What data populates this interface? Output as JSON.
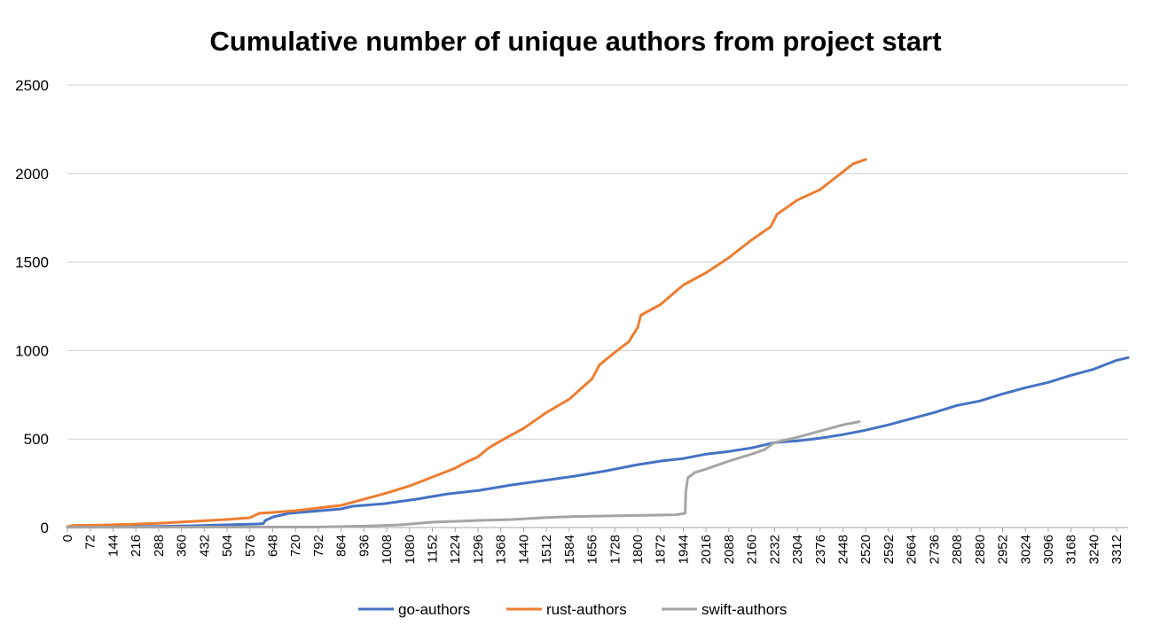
{
  "chart_data": {
    "type": "line",
    "title": "Cumulative number of unique authors from project start",
    "xlabel": "",
    "ylabel": "",
    "xlim": [
      0,
      3348
    ],
    "ylim": [
      0,
      2500
    ],
    "y_ticks": [
      0,
      500,
      1000,
      1500,
      2000,
      2500
    ],
    "x_ticks": [
      0,
      72,
      144,
      216,
      288,
      360,
      432,
      504,
      576,
      648,
      720,
      792,
      864,
      936,
      1008,
      1080,
      1152,
      1224,
      1296,
      1368,
      1440,
      1512,
      1584,
      1656,
      1728,
      1800,
      1872,
      1944,
      2016,
      2088,
      2160,
      2232,
      2304,
      2376,
      2448,
      2520,
      2592,
      2664,
      2736,
      2808,
      2880,
      2952,
      3024,
      3096,
      3168,
      3240,
      3312
    ],
    "grid": true,
    "legend_position": "bottom",
    "series": [
      {
        "name": "go-authors",
        "color": "#4472c4",
        "points": [
          [
            0,
            2
          ],
          [
            100,
            3
          ],
          [
            200,
            5
          ],
          [
            300,
            7
          ],
          [
            400,
            10
          ],
          [
            500,
            15
          ],
          [
            600,
            20
          ],
          [
            618,
            22
          ],
          [
            625,
            40
          ],
          [
            650,
            60
          ],
          [
            700,
            80
          ],
          [
            800,
            95
          ],
          [
            864,
            105
          ],
          [
            900,
            120
          ],
          [
            1000,
            135
          ],
          [
            1100,
            160
          ],
          [
            1200,
            190
          ],
          [
            1300,
            210
          ],
          [
            1400,
            240
          ],
          [
            1500,
            265
          ],
          [
            1600,
            290
          ],
          [
            1700,
            320
          ],
          [
            1800,
            355
          ],
          [
            1872,
            375
          ],
          [
            1944,
            390
          ],
          [
            2016,
            415
          ],
          [
            2088,
            430
          ],
          [
            2160,
            450
          ],
          [
            2232,
            480
          ],
          [
            2304,
            490
          ],
          [
            2376,
            505
          ],
          [
            2448,
            525
          ],
          [
            2520,
            550
          ],
          [
            2592,
            580
          ],
          [
            2664,
            615
          ],
          [
            2736,
            650
          ],
          [
            2808,
            690
          ],
          [
            2880,
            715
          ],
          [
            2952,
            755
          ],
          [
            3024,
            790
          ],
          [
            3096,
            820
          ],
          [
            3168,
            860
          ],
          [
            3240,
            895
          ],
          [
            3312,
            945
          ],
          [
            3348,
            960
          ]
        ]
      },
      {
        "name": "rust-authors",
        "color": "#ed7d31",
        "points": [
          [
            0,
            5
          ],
          [
            20,
            12
          ],
          [
            100,
            14
          ],
          [
            200,
            18
          ],
          [
            300,
            25
          ],
          [
            400,
            35
          ],
          [
            500,
            45
          ],
          [
            576,
            55
          ],
          [
            605,
            80
          ],
          [
            648,
            85
          ],
          [
            720,
            95
          ],
          [
            792,
            110
          ],
          [
            864,
            125
          ],
          [
            936,
            160
          ],
          [
            1008,
            195
          ],
          [
            1080,
            235
          ],
          [
            1152,
            285
          ],
          [
            1224,
            335
          ],
          [
            1260,
            370
          ],
          [
            1296,
            400
          ],
          [
            1330,
            450
          ],
          [
            1368,
            490
          ],
          [
            1440,
            560
          ],
          [
            1512,
            650
          ],
          [
            1584,
            725
          ],
          [
            1656,
            840
          ],
          [
            1680,
            920
          ],
          [
            1728,
            990
          ],
          [
            1772,
            1050
          ],
          [
            1800,
            1130
          ],
          [
            1810,
            1200
          ],
          [
            1872,
            1260
          ],
          [
            1944,
            1370
          ],
          [
            2016,
            1440
          ],
          [
            2088,
            1525
          ],
          [
            2160,
            1625
          ],
          [
            2220,
            1700
          ],
          [
            2240,
            1770
          ],
          [
            2304,
            1850
          ],
          [
            2376,
            1910
          ],
          [
            2448,
            2010
          ],
          [
            2480,
            2055
          ],
          [
            2520,
            2080
          ]
        ]
      },
      {
        "name": "swift-authors",
        "color": "#a5a5a5",
        "points": [
          [
            0,
            2
          ],
          [
            800,
            3
          ],
          [
            940,
            8
          ],
          [
            1050,
            15
          ],
          [
            1150,
            30
          ],
          [
            1300,
            40
          ],
          [
            1400,
            45
          ],
          [
            1500,
            55
          ],
          [
            1600,
            62
          ],
          [
            1700,
            65
          ],
          [
            1800,
            68
          ],
          [
            1920,
            72
          ],
          [
            1950,
            80
          ],
          [
            1952,
            200
          ],
          [
            1958,
            280
          ],
          [
            1980,
            310
          ],
          [
            2016,
            330
          ],
          [
            2088,
            375
          ],
          [
            2160,
            415
          ],
          [
            2200,
            440
          ],
          [
            2232,
            480
          ],
          [
            2304,
            510
          ],
          [
            2376,
            545
          ],
          [
            2448,
            580
          ],
          [
            2500,
            598
          ]
        ]
      }
    ]
  }
}
